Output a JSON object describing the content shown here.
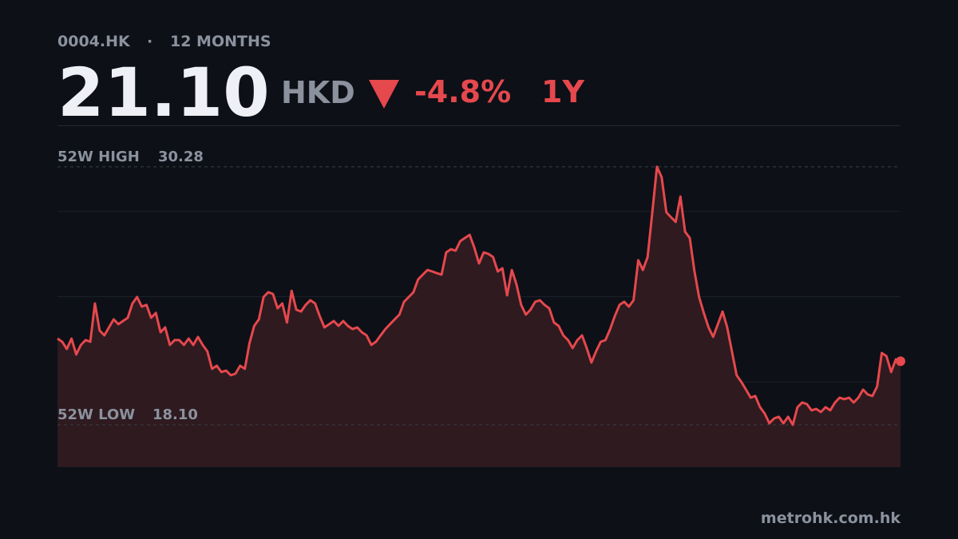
{
  "chart_data": {
    "type": "line",
    "ticker": "0004.HK",
    "separator": "·",
    "period": "12 MONTHS",
    "price": "21.10",
    "currency": "HKD",
    "change": "-4.8%",
    "range": "1Y",
    "source": "metrohk.com.hk",
    "high_label": "52W HIGH",
    "high": 30.28,
    "low_label": "52W LOW",
    "low": {
      "value": 18.1,
      "label": "18.10"
    },
    "color": "#e5484d",
    "ylim": [
      16.1,
      32.2
    ],
    "values": [
      22.17,
      22.02,
      21.68,
      22.17,
      21.42,
      21.87,
      22.1,
      22.02,
      23.83,
      22.55,
      22.32,
      22.7,
      23.08,
      22.85,
      23.0,
      23.15,
      23.83,
      24.13,
      23.68,
      23.76,
      23.15,
      23.38,
      22.47,
      22.7,
      21.87,
      22.1,
      22.1,
      21.87,
      22.17,
      21.87,
      22.25,
      21.87,
      21.57,
      20.74,
      20.89,
      20.59,
      20.66,
      20.44,
      20.51,
      20.89,
      20.74,
      21.95,
      22.77,
      23.08,
      24.13,
      24.36,
      24.28,
      23.6,
      23.83,
      22.93,
      24.43,
      23.53,
      23.45,
      23.76,
      23.98,
      23.83,
      23.23,
      22.7,
      22.85,
      23.0,
      22.77,
      23.0,
      22.77,
      22.62,
      22.7,
      22.47,
      22.32,
      21.87,
      22.02,
      22.32,
      22.62,
      22.85,
      23.08,
      23.3,
      23.91,
      24.13,
      24.36,
      24.96,
      25.19,
      25.41,
      25.34,
      25.26,
      25.19,
      26.24,
      26.39,
      26.32,
      26.77,
      26.92,
      27.07,
      26.47,
      25.72,
      26.24,
      26.17,
      26.02,
      25.34,
      25.49,
      24.21,
      25.41,
      24.74,
      23.76,
      23.3,
      23.53,
      23.91,
      23.98,
      23.76,
      23.6,
      22.93,
      22.77,
      22.32,
      22.1,
      21.72,
      22.1,
      22.32,
      21.72,
      21.04,
      21.57,
      22.02,
      22.1,
      22.62,
      23.23,
      23.76,
      23.91,
      23.68,
      23.98,
      25.87,
      25.41,
      26.02,
      28.13,
      30.28,
      29.79,
      28.13,
      27.9,
      27.68,
      28.88,
      27.22,
      26.92,
      25.34,
      24.13,
      23.38,
      22.7,
      22.25,
      22.85,
      23.45,
      22.7,
      21.57,
      20.44,
      20.13,
      19.76,
      19.38,
      19.46,
      18.93,
      18.63,
      18.17,
      18.4,
      18.48,
      18.17,
      18.48,
      18.1,
      18.93,
      19.15,
      19.08,
      18.78,
      18.85,
      18.7,
      18.93,
      18.78,
      19.15,
      19.38,
      19.31,
      19.38,
      19.15,
      19.38,
      19.76,
      19.53,
      19.46,
      19.91,
      21.49,
      21.34,
      20.59,
      21.19,
      21.1
    ]
  }
}
